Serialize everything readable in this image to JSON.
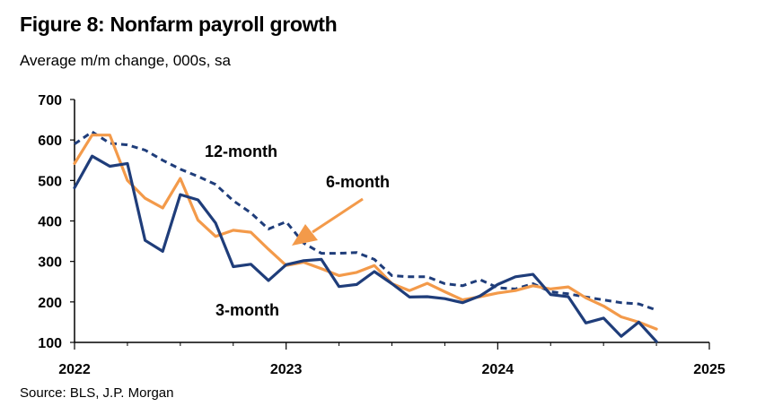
{
  "header": {
    "title": "Figure 8: Nonfarm payroll growth",
    "subtitle": "Average m/m change, 000s, sa"
  },
  "footer": {
    "source": "Source: BLS, J.P. Morgan"
  },
  "chart_data": {
    "type": "line",
    "x_tick_labels": [
      "2022",
      "2023",
      "2024",
      "2025"
    ],
    "y_tick_labels": [
      "100",
      "200",
      "300",
      "400",
      "500",
      "600",
      "700"
    ],
    "xlim": [
      "2022-01",
      "2025-01"
    ],
    "ylim": [
      100,
      700
    ],
    "x": [
      "2022-01",
      "2022-02",
      "2022-03",
      "2022-04",
      "2022-05",
      "2022-06",
      "2022-07",
      "2022-08",
      "2022-09",
      "2022-10",
      "2022-11",
      "2022-12",
      "2023-01",
      "2023-02",
      "2023-03",
      "2023-04",
      "2023-05",
      "2023-06",
      "2023-07",
      "2023-08",
      "2023-09",
      "2023-10",
      "2023-11",
      "2023-12",
      "2024-01",
      "2024-02",
      "2024-03",
      "2024-04",
      "2024-05",
      "2024-06",
      "2024-07",
      "2024-08",
      "2024-09",
      "2024-10"
    ],
    "series": [
      {
        "name": "12-month",
        "style": "dashed",
        "color": "#1f3d7a",
        "values": [
          590,
          620,
          592,
          588,
          575,
          550,
          528,
          510,
          490,
          450,
          420,
          380,
          398,
          345,
          320,
          320,
          322,
          305,
          265,
          262,
          262,
          245,
          240,
          255,
          235,
          232,
          245,
          225,
          220,
          212,
          205,
          198,
          195,
          180
        ]
      },
      {
        "name": "6-month",
        "style": "solid",
        "color": "#f39a4a",
        "values": [
          542,
          612,
          612,
          500,
          456,
          432,
          505,
          402,
          362,
          377,
          372,
          330,
          290,
          298,
          282,
          265,
          273,
          290,
          245,
          228,
          246,
          225,
          205,
          213,
          222,
          228,
          240,
          232,
          237,
          210,
          190,
          163,
          150,
          133
        ]
      },
      {
        "name": "3-month",
        "style": "solid",
        "color": "#1f3d7a",
        "values": [
          482,
          560,
          535,
          542,
          352,
          325,
          465,
          452,
          395,
          287,
          293,
          253,
          292,
          302,
          305,
          238,
          243,
          275,
          245,
          212,
          213,
          208,
          198,
          215,
          243,
          262,
          268,
          218,
          213,
          148,
          160,
          115,
          150,
          102
        ]
      }
    ],
    "annotations": [
      "12-month",
      "6-month",
      "3-month"
    ],
    "grid": false
  }
}
